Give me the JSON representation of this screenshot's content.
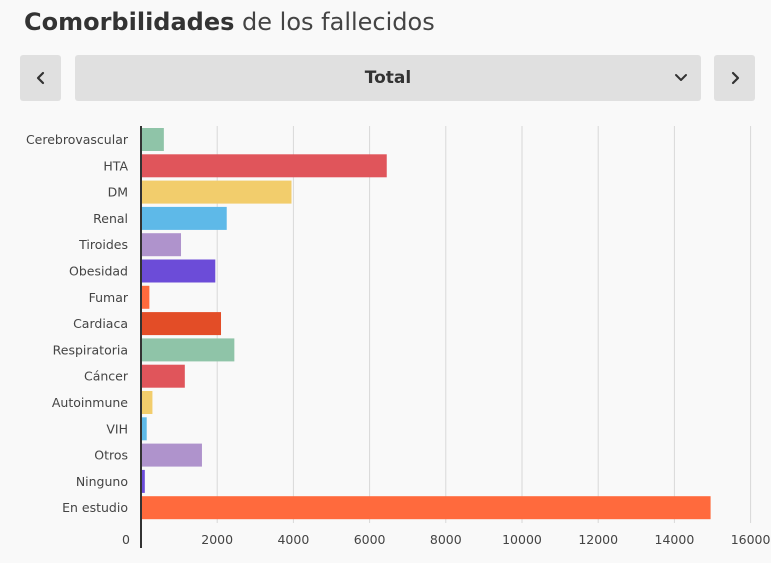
{
  "header": {
    "title_bold": "Comorbilidades",
    "title_rest": " de los fallecidos"
  },
  "selector": {
    "value": "Total",
    "prev_icon": "chevron-left-icon",
    "next_icon": "chevron-right-icon",
    "dropdown_icon": "chevron-down-icon"
  },
  "chart_data": {
    "type": "bar",
    "orientation": "horizontal",
    "title": "",
    "xlabel": "",
    "ylabel": "",
    "xlim": [
      0,
      16000
    ],
    "x_ticks": [
      0,
      2000,
      4000,
      6000,
      8000,
      10000,
      12000,
      14000,
      16000
    ],
    "grid": true,
    "categories": [
      "Cerebrovascular",
      "HTA",
      "DM",
      "Renal",
      "Tiroides",
      "Obesidad",
      "Fumar",
      "Cardiaca",
      "Respiratoria",
      "Cáncer",
      "Autoinmune",
      "VIH",
      "Otros",
      "Ninguno",
      "En estudio"
    ],
    "values": [
      600,
      6450,
      3950,
      2250,
      1050,
      1950,
      220,
      2100,
      2450,
      1150,
      300,
      150,
      1600,
      100,
      14950
    ],
    "colors": [
      "#8fc4a8",
      "#e0555b",
      "#f2cd6c",
      "#5eb9e8",
      "#af93cc",
      "#6c4cd8",
      "#ff6a3d",
      "#e34d27",
      "#8fc4a8",
      "#e0555b",
      "#f2cd6c",
      "#5eb9e8",
      "#af93cc",
      "#6c4cd8",
      "#ff6a3d"
    ]
  }
}
